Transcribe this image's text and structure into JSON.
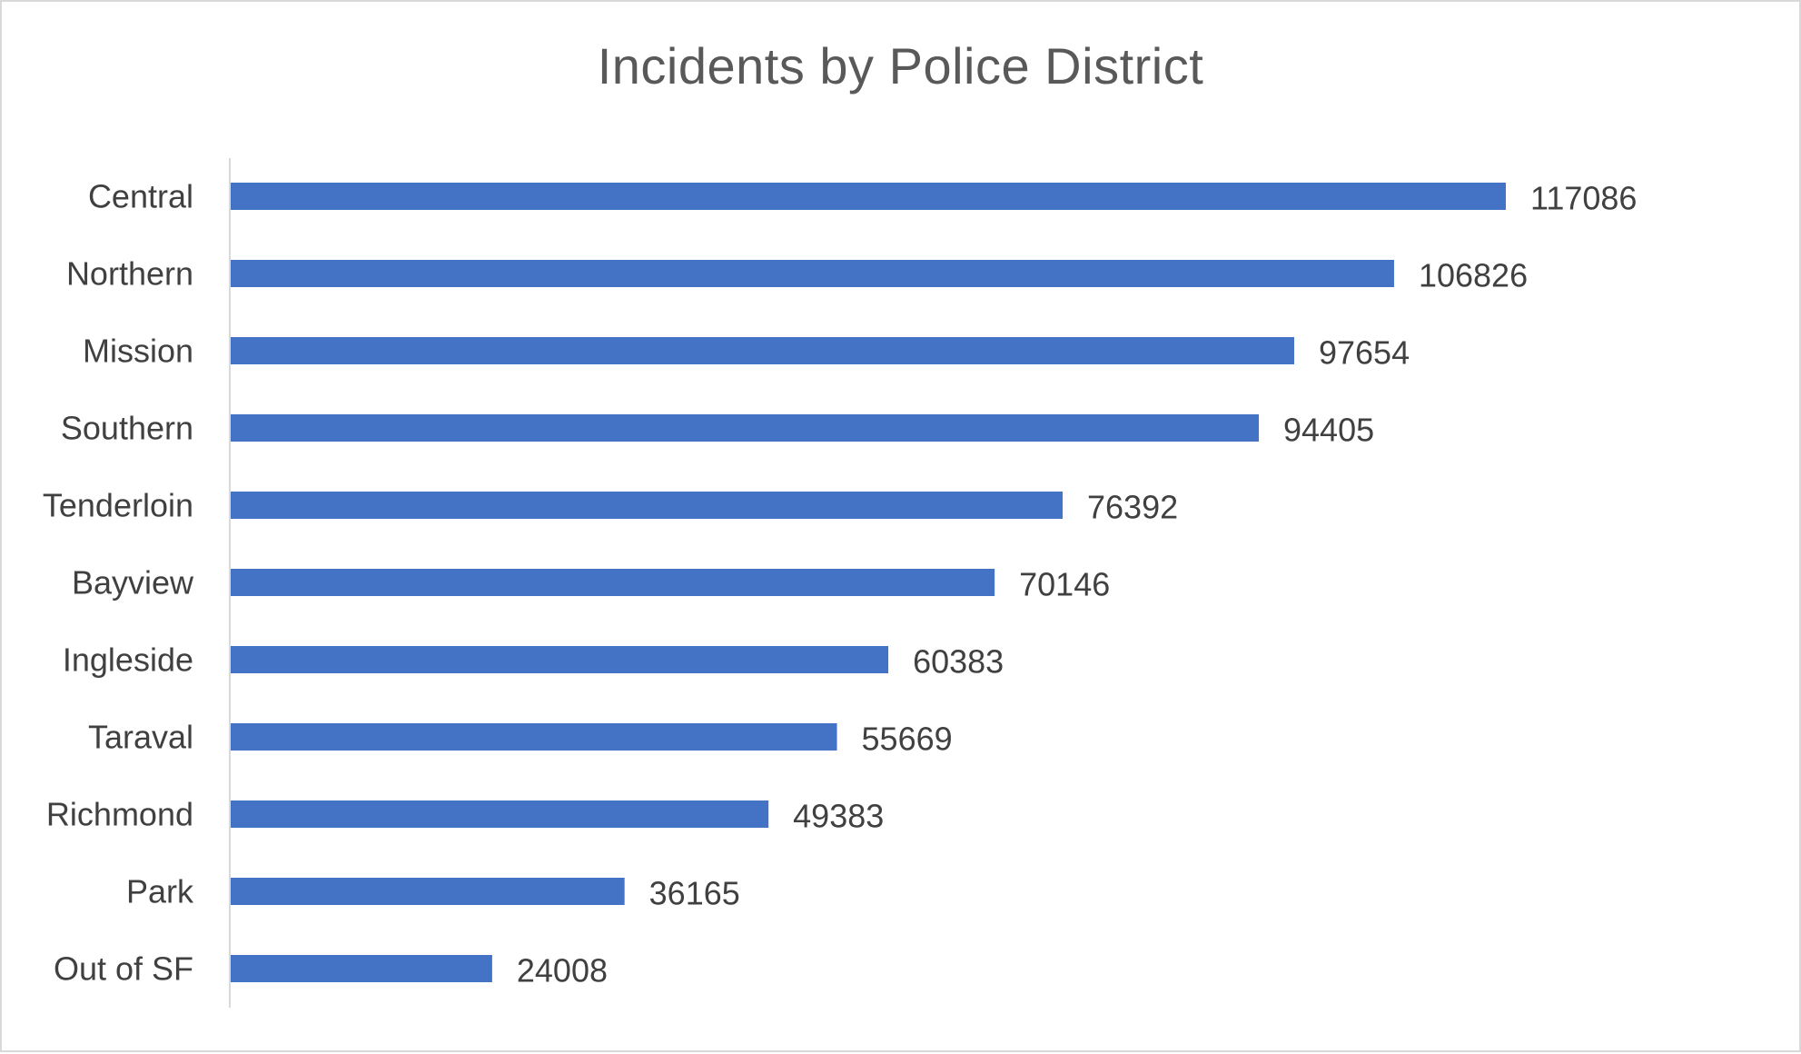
{
  "chart_data": {
    "type": "bar",
    "orientation": "horizontal",
    "title": "Incidents by Police District",
    "xlabel": "",
    "ylabel": "",
    "categories": [
      "Central",
      "Northern",
      "Mission",
      "Southern",
      "Tenderloin",
      "Bayview",
      "Ingleside",
      "Taraval",
      "Richmond",
      "Park",
      "Out of SF"
    ],
    "values": [
      117086,
      106826,
      97654,
      94405,
      76392,
      70146,
      60383,
      55669,
      49383,
      36165,
      24008
    ],
    "xlim": [
      0,
      150000
    ],
    "grid": false,
    "legend": "none",
    "data_labels": true,
    "bar_color": "#4472C4",
    "axis_color": "#d9d9d9",
    "text_color": "#404040",
    "title_color": "#595959"
  }
}
